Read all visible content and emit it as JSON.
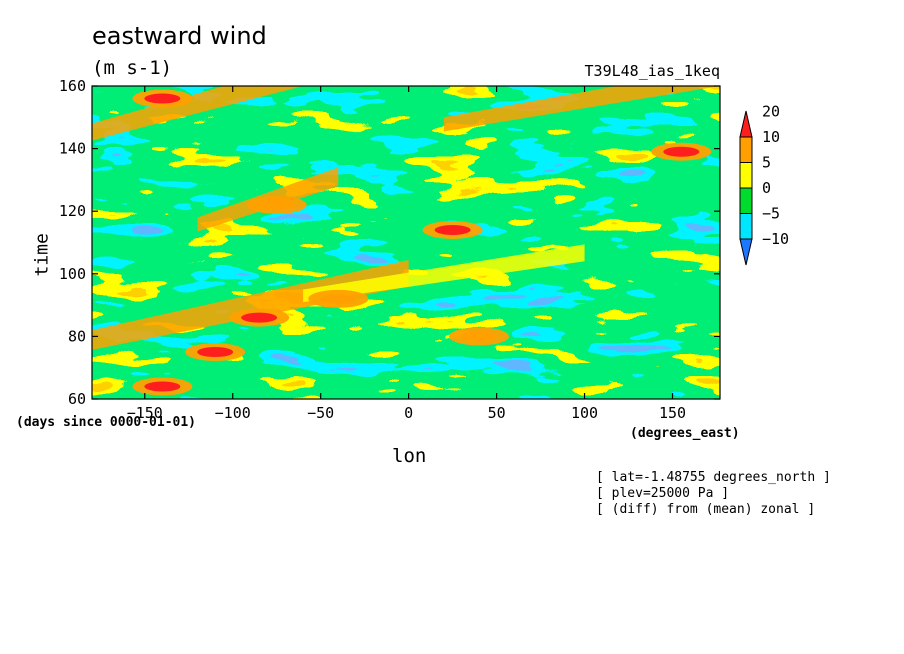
{
  "title": "eastward wind",
  "units": "(m s-1)",
  "run_name": "T39L48_ias_1keq",
  "notes": [
    "[ lat=-1.48755 degrees_north ]",
    "[ plev=25000 Pa ]",
    "[ (diff) from (mean) zonal ]"
  ],
  "chart_data": {
    "type": "heatmap",
    "title": "eastward wind",
    "xlabel": "lon",
    "xunits": "(degrees_east)",
    "ylabel": "time",
    "yunits": "(days since 0000-01-01)",
    "xlim": [
      -180,
      177
    ],
    "ylim": [
      60,
      160
    ],
    "xticks": [
      -150,
      -100,
      -50,
      0,
      50,
      100,
      150
    ],
    "yticks": [
      60,
      80,
      100,
      120,
      140,
      160
    ],
    "colorbar": {
      "levels": [
        -10,
        -5,
        0,
        5,
        10,
        20
      ],
      "level_labels": [
        "-10",
        "-5",
        "0",
        "5",
        "10",
        "20"
      ],
      "colors": [
        "#1e78ff",
        "#00e6ff",
        "#00dc2d",
        "#ffff00",
        "#ffa000",
        "#ff1e1e"
      ],
      "extend": "both"
    },
    "highlights": [
      {
        "lon": -140,
        "time": 64,
        "value": 22
      },
      {
        "lon": -85,
        "time": 86,
        "value": 21
      },
      {
        "lon": -110,
        "time": 75,
        "value": 20
      },
      {
        "lon": 25,
        "time": 114,
        "value": 21
      },
      {
        "lon": 155,
        "time": 139,
        "value": 20
      },
      {
        "lon": -75,
        "time": 122,
        "value": 18
      },
      {
        "lon": -140,
        "time": 156,
        "value": 21
      },
      {
        "lon": 40,
        "time": 80,
        "value": 14
      },
      {
        "lon": -40,
        "time": 92,
        "value": 16
      }
    ],
    "bands": [
      {
        "lon0": -180,
        "time0": 82,
        "lon1": 0,
        "time1": 96,
        "value": 12
      },
      {
        "lon0": 20,
        "time0": 150,
        "lon1": 177,
        "time1": 160,
        "value": 10
      },
      {
        "lon0": -60,
        "time0": 95,
        "lon1": 100,
        "time1": 104,
        "value": 9
      },
      {
        "lon0": -180,
        "time0": 148,
        "lon1": -60,
        "time1": 160,
        "value": 11
      },
      {
        "lon0": -120,
        "time0": 118,
        "lon1": -40,
        "time1": 128,
        "value": 10
      }
    ]
  }
}
